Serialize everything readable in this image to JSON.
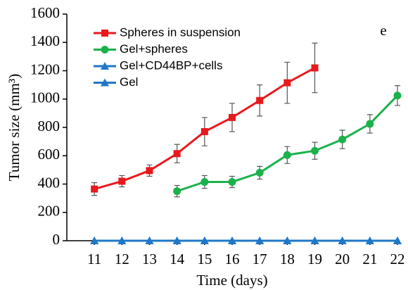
{
  "chart_data": {
    "type": "line",
    "x_label": "Time (days)",
    "y_label": "Tumor size (mm³)",
    "annotation": "e",
    "x": [
      11,
      12,
      13,
      14,
      15,
      16,
      17,
      18,
      19,
      20,
      21,
      22
    ],
    "xlim": [
      10,
      22
    ],
    "xticks": [
      11,
      12,
      13,
      14,
      15,
      16,
      17,
      18,
      19,
      20,
      21,
      22
    ],
    "ylim": [
      0,
      1600
    ],
    "yticks": [
      0,
      200,
      400,
      600,
      800,
      1000,
      1200,
      1400,
      1600
    ],
    "legend": "upper left",
    "series": [
      {
        "name": "Spheres in suspension",
        "color": "#e8191c",
        "marker": "square",
        "values": [
          365,
          420,
          495,
          615,
          770,
          870,
          990,
          1115,
          1220,
          null,
          null,
          null
        ],
        "errors": [
          45,
          40,
          40,
          65,
          100,
          100,
          110,
          145,
          175,
          null,
          null,
          null
        ]
      },
      {
        "name": "Gel+spheres",
        "color": "#1bb14c",
        "marker": "circle",
        "values": [
          null,
          null,
          null,
          350,
          415,
          415,
          480,
          605,
          635,
          715,
          825,
          1025
        ],
        "errors": [
          null,
          null,
          null,
          40,
          45,
          40,
          45,
          60,
          60,
          65,
          65,
          70
        ]
      },
      {
        "name": "Gel+CD44BP+cells",
        "color": "#1f77c8",
        "marker": "triangle",
        "values": [
          0,
          0,
          0,
          0,
          0,
          0,
          0,
          0,
          0,
          0,
          0,
          0
        ]
      },
      {
        "name": "Gel",
        "color": "#1f77c8",
        "marker": "triangle",
        "values": [
          0,
          0,
          0,
          0,
          0,
          0,
          0,
          0,
          0,
          0,
          0,
          0
        ]
      }
    ]
  }
}
